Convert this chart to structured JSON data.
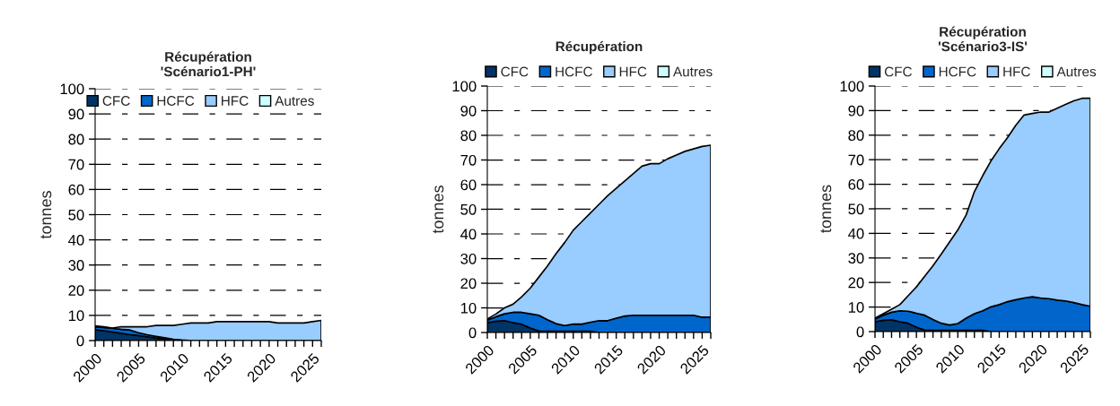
{
  "chart_data": [
    {
      "type": "area",
      "stacked": true,
      "title": "Récupération\n'Scénario1-PH'",
      "ylabel": "tonnes",
      "x": [
        2000,
        2001,
        2002,
        2003,
        2004,
        2005,
        2006,
        2007,
        2008,
        2009,
        2010,
        2011,
        2012,
        2013,
        2014,
        2015,
        2016,
        2017,
        2018,
        2019,
        2020,
        2021,
        2022,
        2023,
        2024,
        2025,
        2026
      ],
      "series": [
        {
          "name": "CFC",
          "color": "#003366",
          "values": [
            4.3,
            3.9,
            3.4,
            2.9,
            2.4,
            2.0,
            1.5,
            1.0,
            0.6,
            0.3,
            0.1,
            0,
            0,
            0,
            0,
            0,
            0,
            0,
            0,
            0,
            0,
            0,
            0,
            0,
            0,
            0,
            0
          ]
        },
        {
          "name": "HCFC",
          "color": "#0066cc",
          "values": [
            1.2,
            1.3,
            1.5,
            1.6,
            1.8,
            1.1,
            0.8,
            0.7,
            0.5,
            0.2,
            0.1,
            0,
            0,
            0,
            0,
            0,
            0,
            0,
            0,
            0,
            0,
            0,
            0,
            0,
            0,
            0,
            0
          ]
        },
        {
          "name": "HFC",
          "color": "#99ccff",
          "values": [
            0.3,
            0.3,
            0.1,
            1.0,
            1.3,
            2.4,
            3.2,
            4.3,
            4.9,
            5.5,
            6.3,
            7.0,
            7.0,
            7.0,
            7.5,
            7.5,
            7.5,
            7.5,
            7.5,
            7.5,
            7.5,
            7.0,
            7.0,
            7.0,
            7.0,
            7.5,
            8.0
          ]
        },
        {
          "name": "Autres",
          "color": "#ccffff",
          "values": [
            null,
            null,
            null,
            null,
            null,
            null,
            null,
            null,
            null,
            null,
            null,
            null,
            null,
            null,
            null,
            null,
            null,
            null,
            null,
            null,
            null,
            null,
            null,
            null,
            null,
            null,
            null
          ]
        }
      ],
      "xlim": [
        2000,
        2026
      ],
      "xticks": [
        2000,
        {
          "value": 2001,
          "label": null
        },
        {
          "value": 2002,
          "label": null
        },
        {
          "value": 2003,
          "label": null
        },
        {
          "value": 2004,
          "label": null
        },
        2005,
        {
          "value": 2006,
          "label": null
        },
        {
          "value": 2007,
          "label": null
        },
        {
          "value": 2008,
          "label": null
        },
        {
          "value": 2009,
          "label": null
        },
        2010,
        {
          "value": 2011,
          "label": null
        },
        {
          "value": 2012,
          "label": null
        },
        {
          "value": 2013,
          "label": null
        },
        {
          "value": 2014,
          "label": null
        },
        2015,
        {
          "value": 2016,
          "label": null
        },
        {
          "value": 2017,
          "label": null
        },
        {
          "value": 2018,
          "label": null
        },
        {
          "value": 2019,
          "label": null
        },
        2020,
        {
          "value": 2021,
          "label": null
        },
        {
          "value": 2022,
          "label": null
        },
        {
          "value": 2023,
          "label": null
        },
        {
          "value": 2024,
          "label": null
        },
        2025,
        {
          "value": 2026,
          "label": null
        }
      ],
      "ylim": [
        0,
        100
      ],
      "yticks": [
        0,
        10,
        20,
        30,
        40,
        50,
        60,
        70,
        80,
        90,
        100
      ],
      "grid": "y",
      "legend": "top right"
    },
    {
      "type": "area",
      "stacked": true,
      "title": "Récupération",
      "ylabel": "tonnes",
      "x": [
        2000,
        2001,
        2002,
        2003,
        2004,
        2005,
        2006,
        2007,
        2008,
        2009,
        2010,
        2011,
        2012,
        2013,
        2014,
        2015,
        2016,
        2017,
        2018,
        2019,
        2020,
        2021,
        2022,
        2023,
        2024,
        2025,
        2026
      ],
      "series": [
        {
          "name": "CFC",
          "color": "#003366",
          "values": [
            4.0,
            4.6,
            4.8,
            4.0,
            3.4,
            1.8,
            0.6,
            0.5,
            0.5,
            0.5,
            0.5,
            0.5,
            0.5,
            0,
            0,
            0,
            0,
            0,
            0,
            0,
            0,
            0,
            0,
            0,
            0,
            0,
            0
          ]
        },
        {
          "name": "HCFC",
          "color": "#0066cc",
          "values": [
            1.0,
            1.8,
            2.8,
            4.2,
            4.8,
            5.8,
            6.4,
            4.7,
            3.1,
            2.3,
            2.9,
            2.9,
            3.7,
            4.8,
            4.8,
            5.8,
            6.7,
            7.0,
            7.0,
            7.0,
            7.0,
            7.0,
            7.0,
            7.0,
            7.0,
            6.2,
            6.2
          ]
        },
        {
          "name": "HFC",
          "color": "#99ccff",
          "values": [
            0.5,
            1.1,
            2.4,
            3.3,
            6.3,
            10.4,
            15.5,
            21.8,
            28.4,
            33.7,
            38.1,
            41.6,
            44.3,
            47.2,
            50.7,
            52.7,
            54.8,
            57.5,
            60.5,
            61.5,
            61.5,
            63.5,
            65.0,
            66.5,
            67.5,
            69.3,
            69.8
          ]
        },
        {
          "name": "Autres",
          "color": "#ccffff",
          "values": [
            null,
            null,
            null,
            null,
            null,
            null,
            null,
            null,
            null,
            null,
            null,
            null,
            null,
            null,
            null,
            null,
            null,
            null,
            null,
            null,
            null,
            null,
            null,
            null,
            null,
            null,
            null
          ]
        }
      ],
      "xlim": [
        2000,
        2026
      ],
      "xticks": [
        2000,
        {
          "value": 2001,
          "label": null
        },
        {
          "value": 2002,
          "label": null
        },
        {
          "value": 2003,
          "label": null
        },
        {
          "value": 2004,
          "label": null
        },
        2005,
        {
          "value": 2006,
          "label": null
        },
        {
          "value": 2007,
          "label": null
        },
        {
          "value": 2008,
          "label": null
        },
        {
          "value": 2009,
          "label": null
        },
        2010,
        {
          "value": 2011,
          "label": null
        },
        {
          "value": 2012,
          "label": null
        },
        {
          "value": 2013,
          "label": null
        },
        {
          "value": 2014,
          "label": null
        },
        2015,
        {
          "value": 2016,
          "label": null
        },
        {
          "value": 2017,
          "label": null
        },
        {
          "value": 2018,
          "label": null
        },
        {
          "value": 2019,
          "label": null
        },
        2020,
        {
          "value": 2021,
          "label": null
        },
        {
          "value": 2022,
          "label": null
        },
        {
          "value": 2023,
          "label": null
        },
        {
          "value": 2024,
          "label": null
        },
        2025,
        {
          "value": 2026,
          "label": null
        }
      ],
      "ylim": [
        0,
        100
      ],
      "yticks": [
        0,
        10,
        20,
        30,
        40,
        50,
        60,
        70,
        80,
        90,
        100
      ],
      "grid": "y",
      "legend": "top"
    },
    {
      "type": "area",
      "stacked": true,
      "title": "Récupération\n'Scénario3-IS'",
      "ylabel": "tonnes",
      "x": [
        2000,
        2001,
        2002,
        2003,
        2004,
        2005,
        2006,
        2007,
        2008,
        2009,
        2010,
        2011,
        2012,
        2013,
        2014,
        2015,
        2016,
        2017,
        2018,
        2019,
        2020,
        2021,
        2022,
        2023,
        2024,
        2025,
        2026
      ],
      "series": [
        {
          "name": "CFC",
          "color": "#003366",
          "values": [
            4.0,
            4.6,
            4.8,
            4.0,
            3.4,
            1.8,
            0.6,
            0.5,
            0.5,
            0.5,
            0.5,
            0.5,
            0.5,
            0.5,
            0,
            0,
            0,
            0,
            0,
            0,
            0,
            0,
            0,
            0,
            0,
            0,
            0
          ]
        },
        {
          "name": "HCFC",
          "color": "#0066cc",
          "values": [
            1.1,
            2.1,
            3.1,
            4.5,
            4.9,
            5.7,
            6.1,
            4.4,
            2.9,
            2.2,
            2.8,
            5.0,
            6.8,
            8.0,
            10.1,
            11.0,
            12.2,
            13.0,
            13.7,
            14.2,
            13.7,
            13.4,
            12.8,
            12.5,
            11.8,
            11.0,
            10.3
          ]
        },
        {
          "name": "HFC",
          "color": "#99ccff",
          "values": [
            0.4,
            0.6,
            1.2,
            2.5,
            6.3,
            10.7,
            15.8,
            21.9,
            28.2,
            33.8,
            38.1,
            42.0,
            49.7,
            55.0,
            59.4,
            63.5,
            66.8,
            71.0,
            74.5,
            74.6,
            75.7,
            76.0,
            78.2,
            80.0,
            82.2,
            84.0,
            84.7
          ]
        },
        {
          "name": "Autres",
          "color": "#ccffff",
          "values": [
            null,
            null,
            null,
            null,
            null,
            null,
            null,
            null,
            null,
            null,
            null,
            null,
            null,
            null,
            null,
            null,
            null,
            null,
            null,
            null,
            null,
            null,
            null,
            null,
            null,
            null,
            null
          ]
        }
      ],
      "xlim": [
        2000,
        2026
      ],
      "xticks": [
        2000,
        {
          "value": 2001,
          "label": null
        },
        {
          "value": 2002,
          "label": null
        },
        {
          "value": 2003,
          "label": null
        },
        {
          "value": 2004,
          "label": null
        },
        2005,
        {
          "value": 2006,
          "label": null
        },
        {
          "value": 2007,
          "label": null
        },
        {
          "value": 2008,
          "label": null
        },
        {
          "value": 2009,
          "label": null
        },
        2010,
        {
          "value": 2011,
          "label": null
        },
        {
          "value": 2012,
          "label": null
        },
        {
          "value": 2013,
          "label": null
        },
        {
          "value": 2014,
          "label": null
        },
        2015,
        {
          "value": 2016,
          "label": null
        },
        {
          "value": 2017,
          "label": null
        },
        {
          "value": 2018,
          "label": null
        },
        {
          "value": 2019,
          "label": null
        },
        2020,
        {
          "value": 2021,
          "label": null
        },
        {
          "value": 2022,
          "label": null
        },
        {
          "value": 2023,
          "label": null
        },
        {
          "value": 2024,
          "label": null
        },
        2025,
        {
          "value": 2026,
          "label": null
        }
      ],
      "ylim": [
        0,
        100
      ],
      "yticks": [
        0,
        10,
        20,
        30,
        40,
        50,
        60,
        70,
        80,
        90,
        100
      ],
      "grid": "y",
      "legend": "top"
    }
  ]
}
